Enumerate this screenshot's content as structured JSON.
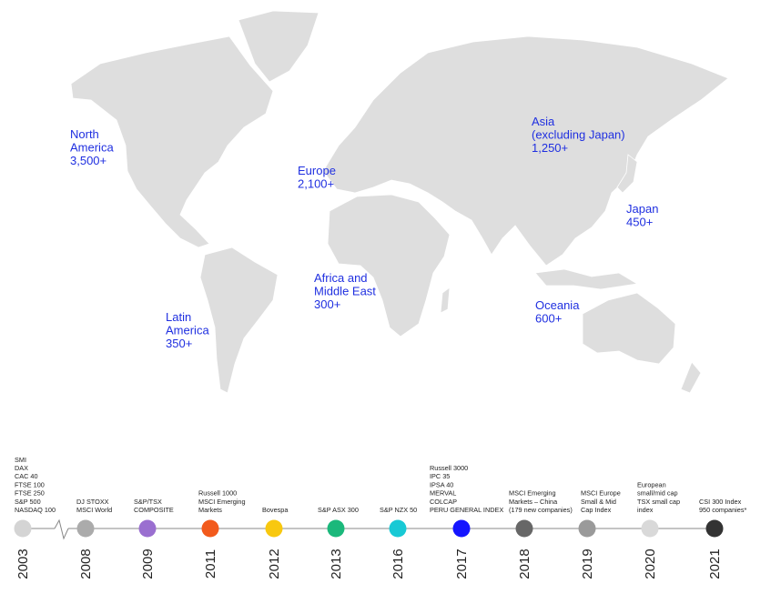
{
  "regions": [
    {
      "lines": [
        "North",
        "America",
        "3,500+"
      ]
    },
    {
      "lines": [
        "Europe",
        "2,100+"
      ]
    },
    {
      "lines": [
        "Asia",
        "(excluding Japan)",
        "1,250+"
      ]
    },
    {
      "lines": [
        "Japan",
        "450+"
      ]
    },
    {
      "lines": [
        "Africa and",
        "Middle East",
        "300+"
      ]
    },
    {
      "lines": [
        "Latin",
        "America",
        "350+"
      ]
    },
    {
      "lines": [
        "Oceania",
        "600+"
      ]
    }
  ],
  "region_color": "#1f2fe0",
  "timeline": [
    {
      "year": "2003",
      "color": "#d4d4d4",
      "indices": [
        "SMI",
        "DAX",
        "CAC 40",
        "FTSE 100",
        "FTSE 250",
        "S&P 500",
        "NASDAQ 100"
      ]
    },
    {
      "year": "2008",
      "color": "#ababab",
      "indices": [
        "DJ STOXX",
        "MSCI World"
      ]
    },
    {
      "year": "2009",
      "color": "#9a6fd0",
      "indices": [
        "S&P/TSX",
        "COMPOSITE"
      ]
    },
    {
      "year": "2011",
      "color": "#f25a1c",
      "indices": [
        "Russell 1000",
        "MSCI Emerging",
        "Markets"
      ]
    },
    {
      "year": "2012",
      "color": "#f8c80f",
      "indices": [
        "Bovespa"
      ]
    },
    {
      "year": "2013",
      "color": "#1bb87b",
      "indices": [
        "S&P ASX 300"
      ]
    },
    {
      "year": "2016",
      "color": "#18c9d5",
      "indices": [
        "S&P NZX 50"
      ]
    },
    {
      "year": "2017",
      "color": "#1515ff",
      "indices": [
        "Russell 3000",
        "IPC 35",
        "IPSA 40",
        "MERVAL",
        "COLCAP",
        "PERU GENERAL INDEX"
      ]
    },
    {
      "year": "2018",
      "color": "#676767",
      "indices": [
        "MSCI Emerging",
        "Markets – China",
        "(179 new companies)"
      ]
    },
    {
      "year": "2019",
      "color": "#9a9a9a",
      "indices": [
        "MSCI Europe",
        "Small & Mid",
        "Cap Index"
      ]
    },
    {
      "year": "2020",
      "color": "#d9d9d9",
      "indices": [
        "European",
        "small/mid cap",
        "TSX small cap",
        "index"
      ]
    },
    {
      "year": "2021",
      "color": "#333333",
      "indices": [
        "CSI 300 Index",
        "950 companies*"
      ]
    }
  ]
}
